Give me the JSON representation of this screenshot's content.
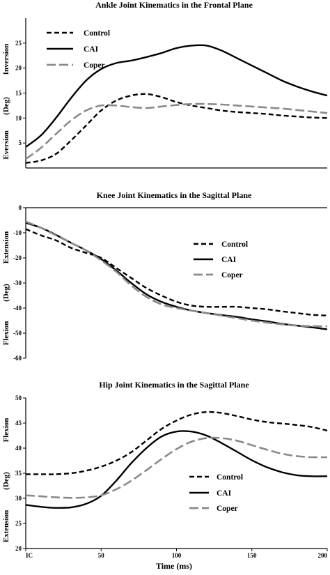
{
  "figure": {
    "xlabel": "Time (ms)"
  },
  "chart_data": [
    {
      "type": "line",
      "title": "Ankle Joint Kinematics in the Frontal Plane",
      "ylabel_top": "Inversion",
      "ylabel_mid": "(Deg)",
      "ylabel_bottom": "Eversion",
      "ylim": [
        0,
        30
      ],
      "yticks": [
        5,
        10,
        15,
        20,
        25
      ],
      "xlim": [
        0,
        200
      ],
      "xtick_labels": [],
      "legend_position": "top-left",
      "series": [
        {
          "name": "Control",
          "style": "short-dash",
          "color": "#000000",
          "x": [
            0,
            10,
            20,
            30,
            40,
            50,
            60,
            70,
            80,
            90,
            100,
            110,
            120,
            130,
            140,
            150,
            160,
            170,
            180,
            190,
            200
          ],
          "y": [
            1,
            1.5,
            2.8,
            5.5,
            8.5,
            11.5,
            13.5,
            14.5,
            14.8,
            14.2,
            13.2,
            12.5,
            12,
            11.5,
            11.2,
            11,
            10.8,
            10.5,
            10.3,
            10.1,
            10
          ]
        },
        {
          "name": "CAI",
          "style": "solid",
          "color": "#000000",
          "x": [
            0,
            10,
            20,
            30,
            40,
            50,
            60,
            70,
            80,
            90,
            100,
            110,
            120,
            130,
            140,
            150,
            160,
            170,
            180,
            190,
            200
          ],
          "y": [
            4.2,
            6.5,
            10,
            14,
            17.5,
            19.8,
            21,
            21.5,
            22.2,
            23,
            24,
            24.5,
            24.5,
            23.5,
            22,
            20.5,
            19,
            17.5,
            16.3,
            15.3,
            14.5
          ]
        },
        {
          "name": "Coper",
          "style": "long-dash",
          "color": "#8a8a8a",
          "x": [
            0,
            10,
            20,
            30,
            40,
            50,
            60,
            70,
            80,
            90,
            100,
            110,
            120,
            130,
            140,
            150,
            160,
            170,
            180,
            190,
            200
          ],
          "y": [
            1.8,
            4,
            6.8,
            9.5,
            11.5,
            12.5,
            12.5,
            12.2,
            12,
            12.3,
            12.6,
            12.8,
            12.8,
            12.7,
            12.5,
            12.3,
            12.1,
            11.9,
            11.6,
            11.3,
            11
          ]
        }
      ]
    },
    {
      "type": "line",
      "title": "Knee Joint Kinematics in the Sagittal Plane",
      "ylabel_top": "Extension",
      "ylabel_mid": "(Deg)",
      "ylabel_bottom": "Flexion",
      "ylim": [
        -60,
        0
      ],
      "yticks": [
        0,
        -10,
        -20,
        -30,
        -40,
        -50,
        -60
      ],
      "xlim": [
        0,
        200
      ],
      "xtick_labels": [],
      "legend_position": "right",
      "series": [
        {
          "name": "Control",
          "style": "short-dash",
          "color": "#000000",
          "x": [
            0,
            10,
            20,
            30,
            40,
            50,
            60,
            70,
            80,
            90,
            100,
            110,
            120,
            130,
            140,
            150,
            160,
            170,
            180,
            190,
            200
          ],
          "y": [
            -8.5,
            -11,
            -13,
            -16,
            -18,
            -20,
            -24,
            -28,
            -32,
            -35,
            -37.5,
            -39,
            -39.5,
            -39.5,
            -39.5,
            -40,
            -40.5,
            -41.3,
            -42,
            -42.7,
            -43
          ]
        },
        {
          "name": "CAI",
          "style": "solid",
          "color": "#000000",
          "x": [
            0,
            10,
            20,
            30,
            40,
            50,
            60,
            70,
            80,
            90,
            100,
            110,
            120,
            130,
            140,
            150,
            160,
            170,
            180,
            190,
            200
          ],
          "y": [
            -6,
            -8,
            -10.8,
            -14,
            -17,
            -20.5,
            -25,
            -30,
            -34.5,
            -37.5,
            -39.5,
            -41,
            -42,
            -42.8,
            -43.5,
            -44.5,
            -45.3,
            -46.3,
            -47,
            -47.7,
            -48.5
          ]
        },
        {
          "name": "Coper",
          "style": "long-dash",
          "color": "#8a8a8a",
          "x": [
            0,
            10,
            20,
            30,
            40,
            50,
            60,
            70,
            80,
            90,
            100,
            110,
            120,
            130,
            140,
            150,
            160,
            170,
            180,
            190,
            200
          ],
          "y": [
            -5.5,
            -8,
            -11,
            -14,
            -17,
            -21,
            -25.5,
            -31,
            -35.5,
            -38.5,
            -40,
            -41,
            -42,
            -43,
            -44,
            -45,
            -45.8,
            -46.5,
            -47,
            -47.2,
            -47.3
          ]
        }
      ]
    },
    {
      "type": "line",
      "title": "Hip Joint Kinematics in the Sagittal Plane",
      "ylabel_top": "Flexion",
      "ylabel_mid": "(Deg)",
      "ylabel_bottom": "Extension",
      "ylim": [
        20,
        50
      ],
      "yticks": [
        20,
        25,
        30,
        35,
        40,
        45,
        50
      ],
      "xlim": [
        0,
        200
      ],
      "xtick_values": [
        0,
        50,
        100,
        150,
        200
      ],
      "xtick_labels": [
        "IC",
        "50",
        "100",
        "150",
        "200"
      ],
      "legend_position": "bottom-left",
      "series": [
        {
          "name": "Control",
          "style": "short-dash",
          "color": "#000000",
          "x": [
            0,
            10,
            20,
            30,
            40,
            50,
            60,
            70,
            80,
            90,
            100,
            110,
            120,
            130,
            140,
            150,
            160,
            170,
            180,
            190,
            200
          ],
          "y": [
            34.8,
            34.8,
            34.8,
            35,
            35.5,
            36.3,
            37.5,
            39.2,
            41.5,
            43.8,
            45.5,
            46.7,
            47.2,
            47,
            46.4,
            45.7,
            45.2,
            44.9,
            44.6,
            44.2,
            43.5
          ]
        },
        {
          "name": "CAI",
          "style": "solid",
          "color": "#000000",
          "x": [
            0,
            10,
            20,
            30,
            40,
            50,
            60,
            70,
            80,
            90,
            100,
            110,
            120,
            130,
            140,
            150,
            160,
            170,
            180,
            190,
            200
          ],
          "y": [
            28.7,
            28.3,
            28.1,
            28.2,
            28.9,
            30.5,
            33.5,
            37,
            40,
            42.3,
            43.3,
            43.3,
            42.5,
            41,
            39.3,
            37.6,
            36.2,
            35.2,
            34.6,
            34.4,
            34.4
          ]
        },
        {
          "name": "Coper",
          "style": "long-dash",
          "color": "#8a8a8a",
          "x": [
            0,
            10,
            20,
            30,
            40,
            50,
            60,
            70,
            80,
            90,
            100,
            110,
            120,
            130,
            140,
            150,
            160,
            170,
            180,
            190,
            200
          ],
          "y": [
            30.6,
            30.4,
            30.2,
            30.1,
            30.2,
            30.6,
            31.8,
            33.5,
            35.6,
            37.8,
            39.8,
            41.3,
            42,
            42,
            41.5,
            40.6,
            39.7,
            38.9,
            38.4,
            38.2,
            38.2
          ]
        }
      ]
    }
  ]
}
